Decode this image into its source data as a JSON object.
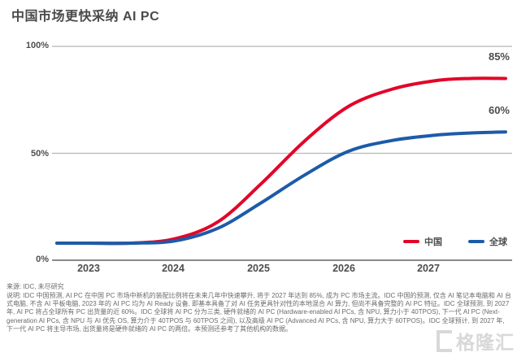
{
  "title": "中国市场更快采纳 AI PC",
  "chart_data": {
    "type": "line",
    "title": "中国市场更快采纳 AI PC",
    "x": [
      2022.65,
      2023,
      2023.5,
      2024,
      2024.5,
      2025,
      2025.5,
      2026,
      2026.5,
      2027,
      2027.4,
      2027.8
    ],
    "series": [
      {
        "name": "中国",
        "color": "#e30529",
        "end_label": "85%",
        "values": [
          8,
          8,
          8,
          10,
          18,
          36,
          56,
          72,
          80,
          84,
          85,
          85
        ]
      },
      {
        "name": "全球",
        "color": "#1d5ba8",
        "end_label": "60%",
        "values": [
          8,
          8,
          8,
          9,
          15,
          27,
          40,
          51,
          56,
          58.5,
          59.5,
          60
        ]
      }
    ],
    "ylim": [
      0,
      100
    ],
    "yticks": [
      {
        "label": "100%",
        "value": 100
      },
      {
        "label": "50%",
        "value": 50
      },
      {
        "label": "0%",
        "value": 0
      }
    ],
    "xticks": [
      "2023",
      "2024",
      "2025",
      "2026",
      "2027"
    ],
    "legend_position": "bottom-right",
    "grid": "horizontal",
    "grid_color": "#b5b5b5",
    "axis_color": "#8a8a8a"
  },
  "footer": {
    "source": "来源: IDC, 未尽研究",
    "note": "说明: IDC 中国预测, AI PC 在中国 PC 市场中新机的装配比例将在未来几年中快速攀升, 将于 2027 年达到 85%, 成为 PC 市场主流。IDC 中国的预测, 仅含 AI 笔记本电脑和 AI 台式电脑, 不含 AI 平板电脑, 2023 年的 AI PC 均为 AI Ready 设备, 即基本具备了对 AI 任务更具针对性的本地混合 AI 算力, 但尚不具备完整的 AI PC 特征。IDC 全球预测, 到 2027年, AI PC 将占全球所有 PC 出货量的近 60%。IDC 全球将 AI PC 分为三类, 硬件就绪的 AI PC (Hardware-enabled AI PCs, 含 NPU, 算力小于 40TPOS), 下一代 AI PC (Next-generation AI PCs, 含 NPU 与 AI 优先 OS, 算力介于 40TPOS 与 60TPOS 之间), 以及高级 AI PC (Advanced AI PCs, 含 NPU, 算力大于 60TPOS)。IDC 全球预计, 到 2027 年, 下一代 AI PC 将主导市场, 出货量将是硬件就绪的 AI PC 的两倍。本预测还参考了其他机构的数据。"
  },
  "watermark": {
    "text": "格隆汇"
  }
}
